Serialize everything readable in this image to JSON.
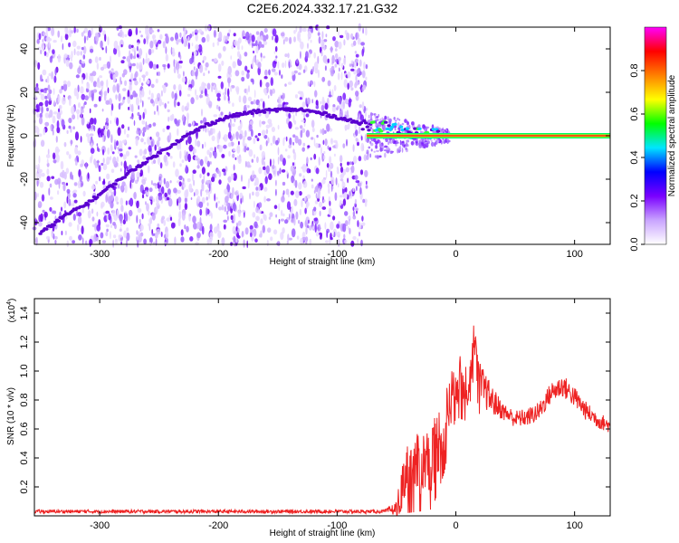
{
  "figure": {
    "title": "C2E6.2024.332.17.21.G32"
  },
  "chart_data": [
    {
      "type": "heatmap",
      "xlabel": "Height of straight line (km)",
      "ylabel": "Frequency (Hz)",
      "xlim": [
        -355,
        130
      ],
      "ylim": [
        -50,
        50
      ],
      "x_ticks": [
        -300,
        -200,
        -100,
        0,
        100
      ],
      "y_ticks": [
        -40,
        -20,
        0,
        20,
        40
      ],
      "noise_region_x": [
        -355,
        -75
      ],
      "colorbar": {
        "label": "Normalized spectral amplitude",
        "range": [
          0,
          1
        ],
        "ticks": [
          0.0,
          0.2,
          0.4,
          0.6,
          0.8
        ],
        "colors": [
          "#ffffff",
          "#c9a4ff",
          "#7a00ff",
          "#0000ff",
          "#00e5ff",
          "#00ff00",
          "#ffff00",
          "#ff8000",
          "#ff0000",
          "#ff00ff"
        ]
      },
      "trace": {
        "x": [
          -350,
          -330,
          -310,
          -290,
          -270,
          -250,
          -230,
          -210,
          -190,
          -170,
          -150,
          -130,
          -110,
          -90,
          -75,
          -60,
          -45,
          -30,
          -15,
          0,
          20,
          60,
          130
        ],
        "y": [
          -45,
          -37,
          -31,
          -23,
          -15,
          -8,
          -1,
          5,
          9,
          11,
          12,
          12,
          10,
          7,
          5,
          4,
          2,
          1,
          0.5,
          0.3,
          0,
          0,
          0
        ]
      },
      "carrier": {
        "y": 0,
        "x_start": -75,
        "x_end": 130
      }
    },
    {
      "type": "line",
      "xlabel": "Height of straight line (km)",
      "ylabel": "SNR (10 * v/v)",
      "scale_note": "(x10",
      "scale_exp": "4",
      "scale_close": ")",
      "xlim": [
        -355,
        130
      ],
      "ylim": [
        0,
        1.5
      ],
      "x_ticks": [
        -300,
        -200,
        -100,
        0,
        100
      ],
      "y_ticks": [
        0.2,
        0.4,
        0.6,
        0.8,
        1.0,
        1.2,
        1.4
      ],
      "color": "#ee2222",
      "envelope": {
        "x": [
          -355,
          -60,
          -50,
          -45,
          -40,
          -30,
          -20,
          -10,
          0,
          10,
          15,
          20,
          30,
          40,
          50,
          60,
          70,
          80,
          90,
          100,
          110,
          120,
          130
        ],
        "y": [
          0.03,
          0.03,
          0.05,
          0.25,
          0.32,
          0.36,
          0.42,
          0.62,
          0.95,
          0.9,
          1.2,
          0.92,
          0.8,
          0.72,
          0.67,
          0.68,
          0.72,
          0.85,
          0.9,
          0.82,
          0.72,
          0.66,
          0.62
        ]
      },
      "noise_amp": {
        "x": [
          -355,
          -60,
          -50,
          -40,
          -30,
          -20,
          -10,
          0,
          20,
          40,
          60,
          90,
          130
        ],
        "y": [
          0.012,
          0.012,
          0.05,
          0.2,
          0.22,
          0.25,
          0.22,
          0.18,
          0.15,
          0.06,
          0.06,
          0.08,
          0.05
        ]
      }
    }
  ]
}
